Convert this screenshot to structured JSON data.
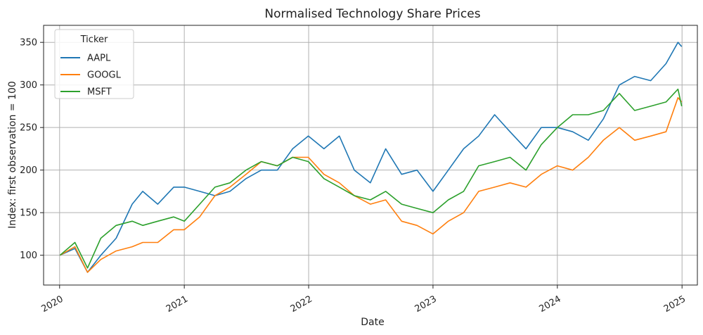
{
  "chart_data": {
    "type": "line",
    "title": "Normalised Technology Share Prices",
    "xlabel": "Date",
    "ylabel": "Index: first observation = 100",
    "x_tick_labels": [
      "2020",
      "2021",
      "2022",
      "2023",
      "2024",
      "2025"
    ],
    "y_ticks": [
      100,
      150,
      200,
      250,
      300,
      350
    ],
    "xlim": [
      "2019-11-15",
      "2025-02-15"
    ],
    "ylim": [
      65,
      370
    ],
    "grid": true,
    "legend": {
      "title": "Ticker",
      "position": "top-left"
    },
    "x": [
      "2020-01-02",
      "2020-02-15",
      "2020-03-23",
      "2020-05-01",
      "2020-06-15",
      "2020-08-01",
      "2020-09-01",
      "2020-10-15",
      "2020-12-01",
      "2021-01-01",
      "2021-02-15",
      "2021-04-01",
      "2021-05-15",
      "2021-07-01",
      "2021-08-15",
      "2021-10-01",
      "2021-11-15",
      "2021-12-31",
      "2022-02-15",
      "2022-04-01",
      "2022-05-15",
      "2022-07-01",
      "2022-08-15",
      "2022-10-01",
      "2022-11-15",
      "2023-01-01",
      "2023-02-15",
      "2023-04-01",
      "2023-05-15",
      "2023-07-01",
      "2023-08-15",
      "2023-10-01",
      "2023-11-15",
      "2024-01-01",
      "2024-02-15",
      "2024-04-01",
      "2024-05-15",
      "2024-07-01",
      "2024-08-15",
      "2024-10-01",
      "2024-11-15",
      "2024-12-20",
      "2024-12-31"
    ],
    "series": [
      {
        "name": "AAPL",
        "color": "#1f77b4",
        "values": [
          100,
          108,
          80,
          100,
          120,
          160,
          175,
          160,
          180,
          180,
          175,
          170,
          175,
          190,
          200,
          200,
          225,
          240,
          225,
          240,
          200,
          185,
          225,
          195,
          200,
          175,
          200,
          225,
          240,
          265,
          245,
          225,
          250,
          250,
          245,
          235,
          260,
          300,
          310,
          305,
          325,
          350,
          345
        ]
      },
      {
        "name": "GOOGL",
        "color": "#ff7f0e",
        "values": [
          100,
          110,
          80,
          95,
          105,
          110,
          115,
          115,
          130,
          130,
          145,
          170,
          180,
          195,
          210,
          205,
          215,
          215,
          195,
          185,
          170,
          160,
          165,
          140,
          135,
          125,
          140,
          150,
          175,
          180,
          185,
          180,
          195,
          205,
          200,
          215,
          235,
          250,
          235,
          240,
          245,
          285,
          280
        ]
      },
      {
        "name": "MSFT",
        "color": "#2ca02c",
        "values": [
          100,
          115,
          85,
          120,
          135,
          140,
          135,
          140,
          145,
          140,
          160,
          180,
          185,
          200,
          210,
          205,
          215,
          210,
          190,
          180,
          170,
          165,
          175,
          160,
          155,
          150,
          165,
          175,
          205,
          210,
          215,
          200,
          230,
          250,
          265,
          265,
          270,
          290,
          270,
          275,
          280,
          295,
          275
        ]
      }
    ]
  }
}
